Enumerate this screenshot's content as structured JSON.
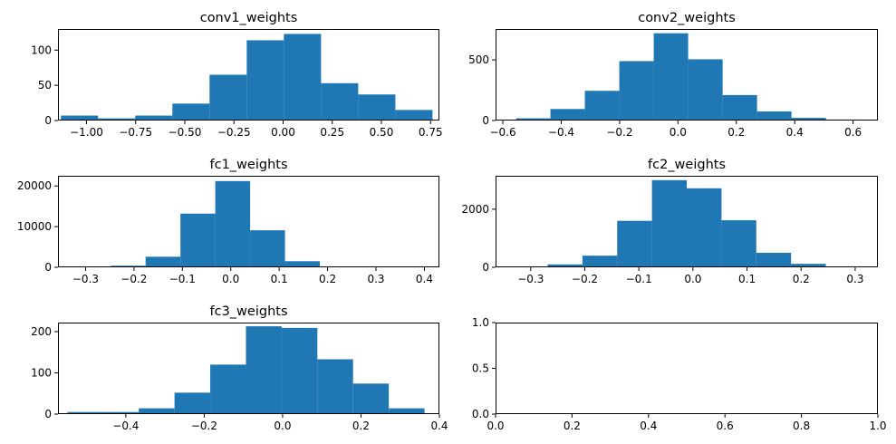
{
  "chart_data": [
    {
      "type": "bar",
      "title": "conv1_weights",
      "xlim": [
        -1.145,
        0.795
      ],
      "ylim": [
        0,
        130
      ],
      "xticks": [
        -1.0,
        -0.75,
        -0.5,
        -0.25,
        0.0,
        0.25,
        0.5,
        0.75
      ],
      "xtick_labels": [
        "−1.00",
        "−0.75",
        "−0.50",
        "−0.25",
        "0.00",
        "0.25",
        "0.50",
        "0.75"
      ],
      "yticks": [
        0,
        50,
        100
      ],
      "ytick_labels": [
        "0",
        "50",
        "100"
      ],
      "bin_edges": [
        -1.13,
        -0.941,
        -0.752,
        -0.563,
        -0.374,
        -0.185,
        0.004,
        0.193,
        0.382,
        0.571,
        0.76
      ],
      "values": [
        7,
        3,
        7,
        24,
        65,
        114,
        123,
        53,
        37,
        15
      ]
    },
    {
      "type": "bar",
      "title": "conv2_weights",
      "xlim": [
        -0.625,
        0.685
      ],
      "ylim": [
        0,
        755
      ],
      "xticks": [
        -0.6,
        -0.4,
        -0.2,
        0.0,
        0.2,
        0.4,
        0.6
      ],
      "xtick_labels": [
        "−0.6",
        "−0.4",
        "−0.2",
        "0.0",
        "0.2",
        "0.4",
        "0.6"
      ],
      "yticks": [
        0,
        500
      ],
      "ytick_labels": [
        "0",
        "500"
      ],
      "bin_edges": [
        -0.555,
        -0.437,
        -0.319,
        -0.201,
        -0.083,
        0.035,
        0.153,
        0.271,
        0.389,
        0.507,
        0.625
      ],
      "values": [
        18,
        95,
        245,
        490,
        720,
        505,
        210,
        75,
        22,
        8
      ]
    },
    {
      "type": "bar",
      "title": "fc1_weights",
      "xlim": [
        -0.357,
        0.431
      ],
      "ylim": [
        0,
        22500
      ],
      "xticks": [
        -0.3,
        -0.2,
        -0.1,
        0.0,
        0.1,
        0.2,
        0.3,
        0.4
      ],
      "xtick_labels": [
        "−0.3",
        "−0.2",
        "−0.1",
        "0.0",
        "0.1",
        "0.2",
        "0.3",
        "0.4"
      ],
      "yticks": [
        0,
        10000,
        20000
      ],
      "ytick_labels": [
        "0",
        "10000",
        "20000"
      ],
      "bin_edges": [
        -0.32,
        -0.248,
        -0.176,
        -0.104,
        -0.032,
        0.04,
        0.112,
        0.184,
        0.256,
        0.328,
        0.4
      ],
      "values": [
        50,
        400,
        2600,
        13200,
        21200,
        9100,
        1500,
        150,
        30,
        10
      ]
    },
    {
      "type": "bar",
      "title": "fc2_weights",
      "xlim": [
        -0.365,
        0.342
      ],
      "ylim": [
        0,
        3150
      ],
      "xticks": [
        -0.3,
        -0.2,
        -0.1,
        0.0,
        0.1,
        0.2,
        0.3
      ],
      "xtick_labels": [
        "−0.3",
        "−0.2",
        "−0.1",
        "0.0",
        "0.1",
        "0.2",
        "0.3"
      ],
      "yticks": [
        0,
        2000
      ],
      "ytick_labels": [
        "0",
        "2000"
      ],
      "bin_edges": [
        -0.333,
        -0.2687,
        -0.2044,
        -0.1401,
        -0.0758,
        -0.0115,
        0.0528,
        0.1171,
        0.1814,
        0.2457,
        0.31
      ],
      "values": [
        20,
        100,
        400,
        1600,
        3000,
        2720,
        1620,
        500,
        120,
        20
      ]
    },
    {
      "type": "bar",
      "title": "fc3_weights",
      "xlim": [
        -0.573,
        0.4
      ],
      "ylim": [
        0,
        222
      ],
      "xticks": [
        -0.4,
        -0.2,
        0.0,
        0.2,
        0.4
      ],
      "xtick_labels": [
        "−0.4",
        "−0.2",
        "0.0",
        "0.2",
        "0.4"
      ],
      "yticks": [
        0,
        100,
        200
      ],
      "ytick_labels": [
        "0",
        "100",
        "200"
      ],
      "bin_edges": [
        -0.549,
        -0.4579,
        -0.3668,
        -0.2757,
        -0.1846,
        -0.0935,
        -0.0024,
        0.0887,
        0.1798,
        0.2709,
        0.362
      ],
      "values": [
        5,
        5,
        14,
        52,
        120,
        213,
        209,
        133,
        74,
        14
      ]
    },
    {
      "type": "bar",
      "title": "",
      "xlim": [
        0,
        1
      ],
      "ylim": [
        0,
        1
      ],
      "xticks": [
        0.0,
        0.2,
        0.4,
        0.6,
        0.8,
        1.0
      ],
      "xtick_labels": [
        "0.0",
        "0.2",
        "0.4",
        "0.6",
        "0.8",
        "1.0"
      ],
      "yticks": [
        0.0,
        0.5,
        1.0
      ],
      "ytick_labels": [
        "0.0",
        "0.5",
        "1.0"
      ],
      "bin_edges": [],
      "values": []
    }
  ]
}
